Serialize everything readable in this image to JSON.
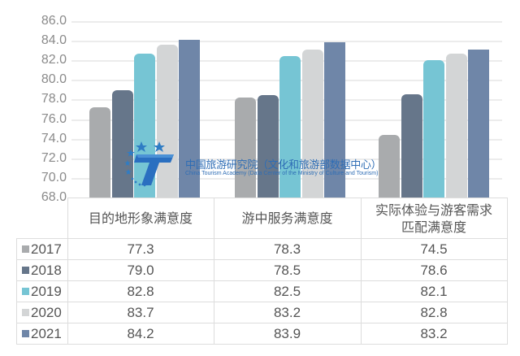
{
  "chart_data": {
    "type": "bar",
    "title": "",
    "xlabel": "",
    "ylabel": "",
    "ylim": [
      68.0,
      86.0
    ],
    "yticks": [
      "86.0",
      "84.0",
      "82.0",
      "80.0",
      "78.0",
      "76.0",
      "74.0",
      "72.0",
      "70.0",
      "68.0"
    ],
    "grid": true,
    "legend_position": "data-table-left",
    "categories": [
      "目的地形象满意度",
      "游中服务满意度",
      "实际体验与游客需求\n匹配满意度"
    ],
    "category_lines": [
      [
        "目的地形象满意度"
      ],
      [
        "游中服务满意度"
      ],
      [
        "实际体验与游客需求",
        "匹配满意度"
      ]
    ],
    "series": [
      {
        "name": "2017",
        "color": "#a9abad",
        "values": [
          "77.3",
          "78.3",
          "74.5"
        ]
      },
      {
        "name": "2018",
        "color": "#66768a",
        "values": [
          "79.0",
          "78.5",
          "78.6"
        ]
      },
      {
        "name": "2019",
        "color": "#76c5d4",
        "values": [
          "82.8",
          "82.5",
          "82.1"
        ]
      },
      {
        "name": "2020",
        "color": "#d3d5d6",
        "values": [
          "83.7",
          "83.2",
          "82.8"
        ]
      },
      {
        "name": "2021",
        "color": "#6f86a8",
        "values": [
          "84.2",
          "83.9",
          "83.2"
        ]
      }
    ]
  },
  "watermark": {
    "cn": "中国旅游研究院（文化和旅游部数据中心）",
    "en": "China Tourism Academy (Data Center of the Ministry of Culture and Tourism)",
    "color": "#2e6db5"
  }
}
